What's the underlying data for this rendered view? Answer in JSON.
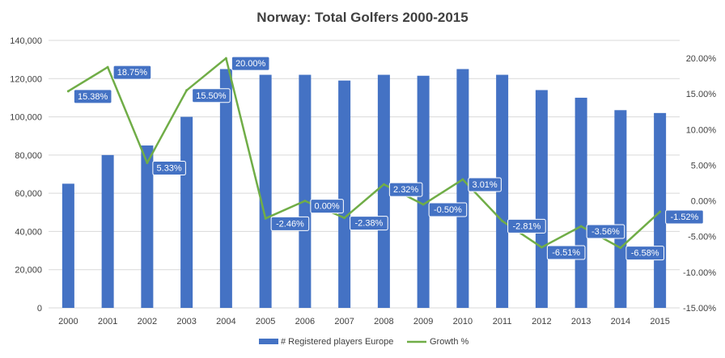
{
  "chart_data": {
    "type": "bar",
    "title": "Norway: Total Golfers 2000-2015",
    "categories": [
      "2000",
      "2001",
      "2002",
      "2003",
      "2004",
      "2005",
      "2006",
      "2007",
      "2008",
      "2009",
      "2010",
      "2011",
      "2012",
      "2013",
      "2014",
      "2015"
    ],
    "series": [
      {
        "name": "# Registered players Europe",
        "type": "bar",
        "axis": "left",
        "values": [
          65000,
          80000,
          85000,
          100000,
          125000,
          122000,
          122000,
          119000,
          122000,
          121500,
          125000,
          122000,
          114000,
          110000,
          103500,
          102000
        ]
      },
      {
        "name": "Growth %",
        "type": "line",
        "axis": "right",
        "values": [
          15.38,
          18.75,
          5.33,
          15.5,
          20.0,
          -2.46,
          0.0,
          -2.38,
          2.32,
          -0.5,
          3.01,
          -2.81,
          -6.51,
          -3.56,
          -6.58,
          -1.52
        ],
        "labels": [
          "15.38%",
          "18.75%",
          "5.33%",
          "15.50%",
          "20.00%",
          "-2.46%",
          "0.00%",
          "-2.38%",
          "2.32%",
          "-0.50%",
          "3.01%",
          "-2.81%",
          "-6.51%",
          "-3.56%",
          "-6.58%",
          "-1.52%"
        ]
      }
    ],
    "y_left": {
      "min": 0,
      "max": 140000,
      "ticks": [
        0,
        20000,
        40000,
        60000,
        80000,
        100000,
        120000,
        140000
      ],
      "tick_labels": [
        "0",
        "20,000",
        "40,000",
        "60,000",
        "80,000",
        "100,000",
        "120,000",
        "140,000"
      ]
    },
    "y_right": {
      "min": -15,
      "max": 22.5,
      "ticks": [
        -15,
        -10,
        -5,
        0,
        5,
        10,
        15,
        20
      ],
      "tick_labels": [
        "-15.00%",
        "-10.00%",
        "-5.00%",
        "0.00%",
        "5.00%",
        "10.00%",
        "15.00%",
        "20.00%"
      ]
    },
    "grid": true,
    "legend_position": "bottom",
    "colors": {
      "bar": "#4472C4",
      "line": "#70AD47",
      "grid": "#D9D9D9",
      "text": "#404040"
    }
  }
}
